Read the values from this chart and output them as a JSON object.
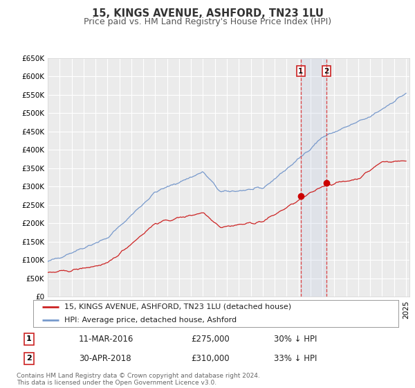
{
  "title": "15, KINGS AVENUE, ASHFORD, TN23 1LU",
  "subtitle": "Price paid vs. HM Land Registry's House Price Index (HPI)",
  "ylim": [
    0,
    650000
  ],
  "yticks": [
    0,
    50000,
    100000,
    150000,
    200000,
    250000,
    300000,
    350000,
    400000,
    450000,
    500000,
    550000,
    600000,
    650000
  ],
  "xlim_start": 1995.0,
  "xlim_end": 2025.3,
  "background_color": "#ffffff",
  "plot_bg_color": "#ebebeb",
  "grid_color": "#ffffff",
  "hpi_color": "#7799cc",
  "price_color": "#cc2222",
  "marker_color": "#cc0000",
  "sale1_x": 2016.19,
  "sale1_y": 275000,
  "sale2_x": 2018.33,
  "sale2_y": 310000,
  "sale1_date": "11-MAR-2016",
  "sale1_price": "£275,000",
  "sale1_pct": "30% ↓ HPI",
  "sale2_date": "30-APR-2018",
  "sale2_price": "£310,000",
  "sale2_pct": "33% ↓ HPI",
  "legend_label1": "15, KINGS AVENUE, ASHFORD, TN23 1LU (detached house)",
  "legend_label2": "HPI: Average price, detached house, Ashford",
  "footer1": "Contains HM Land Registry data © Crown copyright and database right 2024.",
  "footer2": "This data is licensed under the Open Government Licence v3.0.",
  "title_fontsize": 10.5,
  "subtitle_fontsize": 9,
  "tick_fontsize": 7.5,
  "legend_fontsize": 8,
  "table_fontsize": 8.5,
  "footer_fontsize": 6.5
}
